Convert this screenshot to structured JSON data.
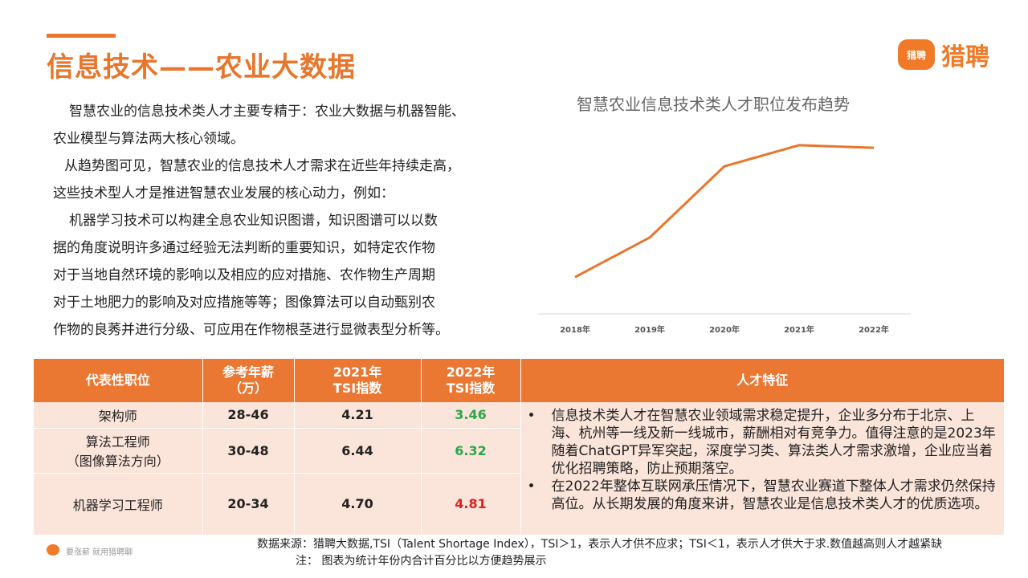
{
  "title": "信息技术——农业大数据",
  "logo": {
    "mark": "猎聘",
    "text": "猎聘"
  },
  "body": [
    "智慧农业的信息技术类人才主要专精于：农业大数据与机器智能、",
    "农业模型与算法两大核心领域。",
    "从趋势图可见，智慧农业的信息技术人才需求在近些年持续走高，",
    "这些技术型人才是推进智慧农业发展的核心动力，例如：",
    "机器学习技术可以构建全息农业知识图谱，知识图谱可以以数",
    "据的角度说明许多通过经验无法判断的重要知识，如特定农作物",
    "对于当地自然环境的影响以及相应的应对措施、农作物生产周期",
    "对于土地肥力的影响及对应措施等等；图像算法可以自动甄别农",
    "作物的良莠并进行分级、可应用在作物根茎进行显微表型分析等。"
  ],
  "chart_data": {
    "type": "line",
    "title": "智慧农业信息技术类人才职位发布趋势",
    "categories": [
      "2018年",
      "2019年",
      "2020年",
      "2021年",
      "2022年"
    ],
    "values": [
      0.1,
      0.25,
      0.52,
      0.6,
      0.59
    ],
    "ylim": [
      0,
      0.7
    ],
    "grid": false,
    "color": "#e8762c"
  },
  "table": {
    "headers": {
      "role": "代表性职位",
      "salary": [
        "参考年薪",
        "（万）"
      ],
      "tsi2021": [
        "2021年",
        "TSI指数"
      ],
      "tsi2022": [
        "2022年",
        "TSI指数"
      ],
      "features": "人才特征"
    },
    "rows": [
      {
        "role": [
          "架构师"
        ],
        "salary": "28-46",
        "tsi2021": "4.21",
        "tsi2022": "3.46"
      },
      {
        "role": [
          "算法工程师",
          "（图像算法方向）"
        ],
        "salary": "30-48",
        "tsi2021": "6.44",
        "tsi2022": "6.32"
      },
      {
        "role": [
          "机器学习工程师"
        ],
        "salary": "20-34",
        "tsi2021": "4.70",
        "tsi2022": "4.81"
      }
    ],
    "colors": {
      "header": "#ea7732",
      "row": "#fbe4d9",
      "down": "#2aa84a",
      "up": "#e02020"
    },
    "bullet": "•",
    "features": [
      "信息技术类人才在智慧农业领域需求稳定提升，企业多分布于北京、上海、杭州等一线及新一线城市，薪酬相对有竞争力。值得注意的是2023年随着ChatGPT异军突起，深度学习类、算法类人才需求激增，企业应当着优化招聘策略，防止预期落空。",
      "在2022年整体互联网承压情况下，智慧农业赛道下整体人才需求仍然保持高位。从长期发展的角度来讲，智慧农业是信息技术类人才的优质选项。"
    ]
  },
  "footer": {
    "slogan": "要涨薪 就用猎聘聊",
    "source": "数据来源：猎聘大数据,TSI（Talent Shortage Index），TSI＞1，表示人才供不应求；TSI＜1，表示人才供大于求.数值越高则人才越紧缺",
    "note": "注： 图表为统计年份内合计百分比以方便趋势展示"
  }
}
